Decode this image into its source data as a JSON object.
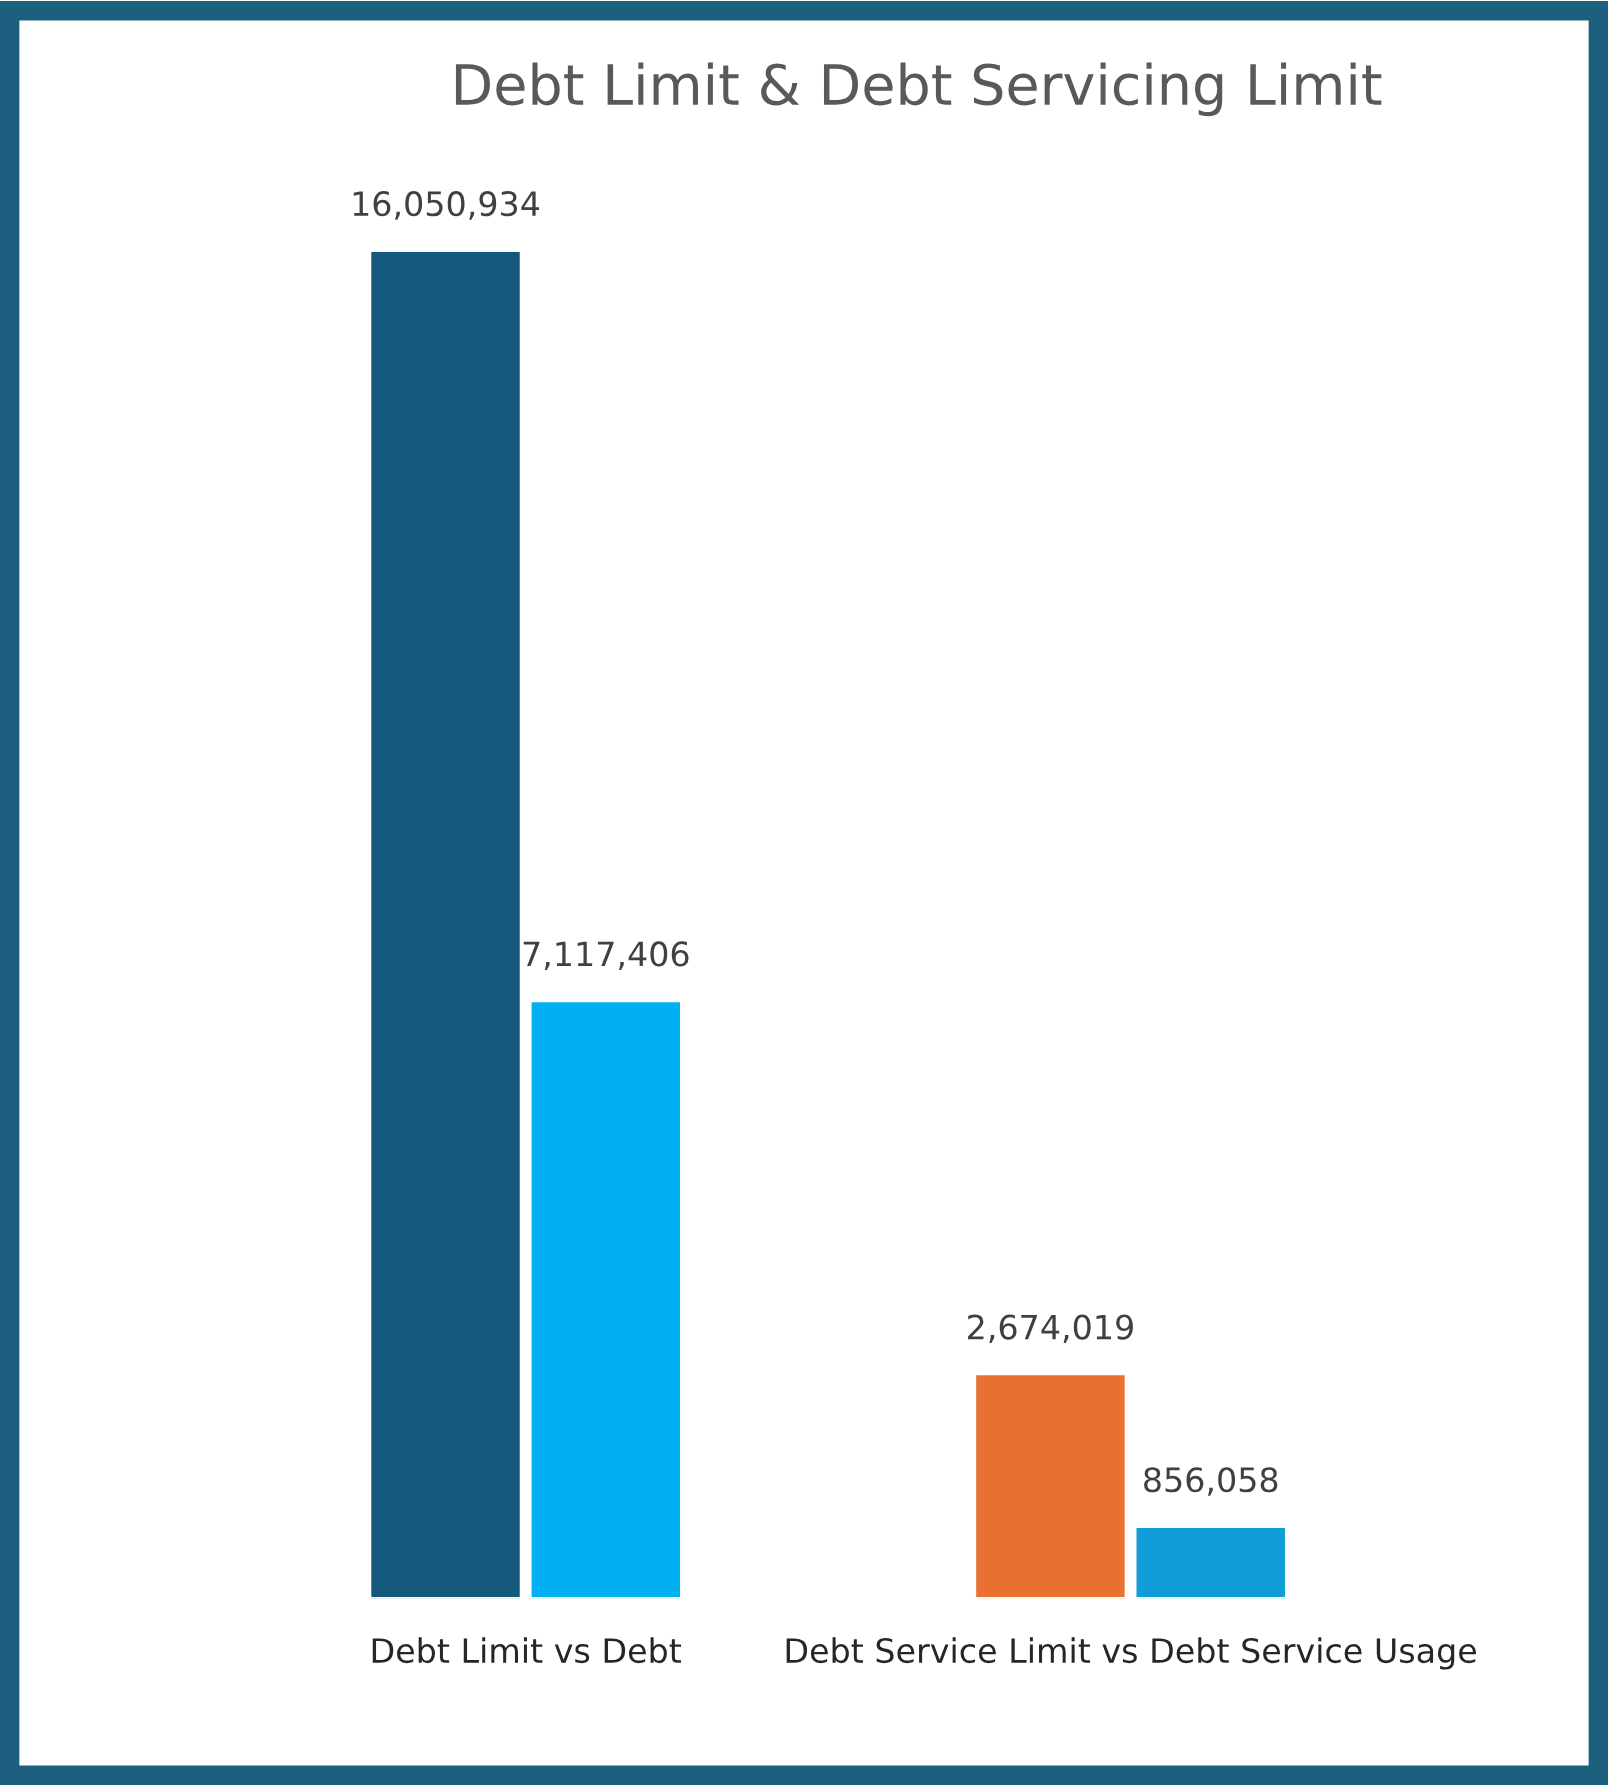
{
  "chart_data": {
    "type": "bar",
    "title": "Debt Limit & Debt Servicing Limit",
    "categories": [
      "Debt Limit vs Debt",
      "Debt Service Limit vs Debt Service Usage"
    ],
    "series": [
      {
        "colors": [
          "#155a7c",
          "#e87030"
        ],
        "values": [
          16050934,
          2674019
        ],
        "value_labels": [
          "16,050,934",
          "2,674,019"
        ]
      },
      {
        "colors": [
          "#00b0f0",
          "#109cd6"
        ],
        "values": [
          7117406,
          856058
        ],
        "value_labels": [
          "7,117,406",
          "856,058"
        ]
      }
    ],
    "tick_labels": "x",
    "grid": false,
    "legend": false
  }
}
